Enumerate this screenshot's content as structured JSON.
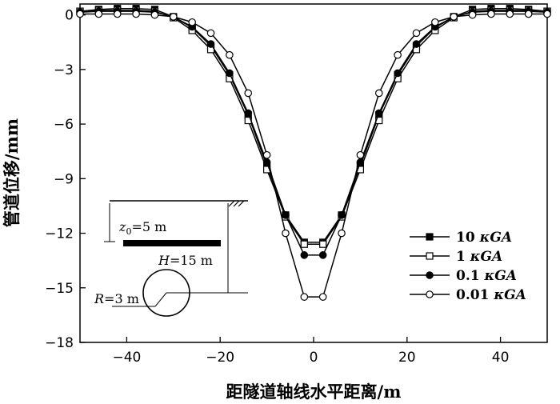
{
  "chart_data": {
    "type": "line",
    "xlabel": "距隧道轴线水平距离/m",
    "ylabel": "管道位移/mm",
    "xlim": [
      -50,
      50
    ],
    "ylim": [
      -18,
      0.6
    ],
    "xticks": [
      -40,
      -20,
      0,
      20,
      40
    ],
    "xtick_labels": [
      "−40",
      "−20",
      "0",
      "20",
      "40"
    ],
    "yticks": [
      0,
      -3,
      -6,
      -9,
      -12,
      -15,
      -18
    ],
    "ytick_labels": [
      "0",
      "−3",
      "−6",
      "−9",
      "−12",
      "−15",
      "−18"
    ],
    "grid": false,
    "legend_position": "bottom-right",
    "series": [
      {
        "name": "10 κGA",
        "legend_prefix": "10 ",
        "legend_suffix": "κGA",
        "marker": "filled-square",
        "x": [
          -50,
          -46,
          -42,
          -38,
          -34,
          -30,
          -26,
          -22,
          -18,
          -14,
          -10,
          -6,
          -2,
          2,
          6,
          10,
          14,
          18,
          22,
          26,
          30,
          34,
          38,
          42,
          46,
          50
        ],
        "y": [
          0.2,
          0.3,
          0.35,
          0.35,
          0.3,
          -0.1,
          -0.7,
          -1.7,
          -3.3,
          -5.5,
          -8.3,
          -11.0,
          -12.5,
          -12.5,
          -11.0,
          -8.3,
          -5.5,
          -3.3,
          -1.7,
          -0.7,
          -0.1,
          0.3,
          0.35,
          0.35,
          0.3,
          0.2
        ]
      },
      {
        "name": "1 κGA",
        "legend_prefix": "1 ",
        "legend_suffix": "κGA",
        "marker": "open-square",
        "x": [
          -50,
          -46,
          -42,
          -38,
          -34,
          -30,
          -26,
          -22,
          -18,
          -14,
          -10,
          -6,
          -2,
          2,
          6,
          10,
          14,
          18,
          22,
          26,
          30,
          34,
          38,
          42,
          46,
          50
        ],
        "y": [
          0.2,
          0.25,
          0.25,
          0.25,
          0.2,
          -0.15,
          -0.85,
          -1.9,
          -3.5,
          -5.8,
          -8.5,
          -11.1,
          -12.6,
          -12.6,
          -11.1,
          -8.5,
          -5.8,
          -3.5,
          -1.9,
          -0.85,
          -0.15,
          0.2,
          0.25,
          0.25,
          0.25,
          0.2
        ]
      },
      {
        "name": "0.1 κGA",
        "legend_prefix": "0.1 ",
        "legend_suffix": "κGA",
        "marker": "filled-circle",
        "x": [
          -50,
          -46,
          -42,
          -38,
          -34,
          -30,
          -26,
          -22,
          -18,
          -14,
          -10,
          -6,
          -2,
          2,
          6,
          10,
          14,
          18,
          22,
          26,
          30,
          34,
          38,
          42,
          46,
          50
        ],
        "y": [
          0.15,
          0.2,
          0.2,
          0.2,
          0.15,
          -0.1,
          -0.65,
          -1.6,
          -3.2,
          -5.4,
          -8.1,
          -11.0,
          -13.2,
          -13.2,
          -11.0,
          -8.1,
          -5.4,
          -3.2,
          -1.6,
          -0.65,
          -0.1,
          0.15,
          0.2,
          0.2,
          0.2,
          0.15
        ]
      },
      {
        "name": "0.01 κGA",
        "legend_prefix": "0.01 ",
        "legend_suffix": "κGA",
        "marker": "open-circle",
        "x": [
          -50,
          -46,
          -42,
          -38,
          -34,
          -30,
          -26,
          -22,
          -18,
          -14,
          -10,
          -6,
          -2,
          2,
          6,
          10,
          14,
          18,
          22,
          26,
          30,
          34,
          38,
          42,
          46,
          50
        ],
        "y": [
          0.05,
          0.05,
          0.05,
          0.05,
          0.0,
          -0.1,
          -0.4,
          -1.0,
          -2.2,
          -4.3,
          -7.7,
          -12.0,
          -15.5,
          -15.5,
          -12.0,
          -7.7,
          -4.3,
          -2.2,
          -1.0,
          -0.4,
          -0.1,
          0.0,
          0.05,
          0.05,
          0.05,
          0.05
        ]
      }
    ],
    "inset": {
      "z0_label_base": "z",
      "z0_label_sub": "0",
      "z0_label_rest": "=5 m",
      "h_label_italic": "H",
      "h_label_rest": "=15 m",
      "r_label_italic": "R",
      "r_label_rest": "=3 m"
    }
  }
}
